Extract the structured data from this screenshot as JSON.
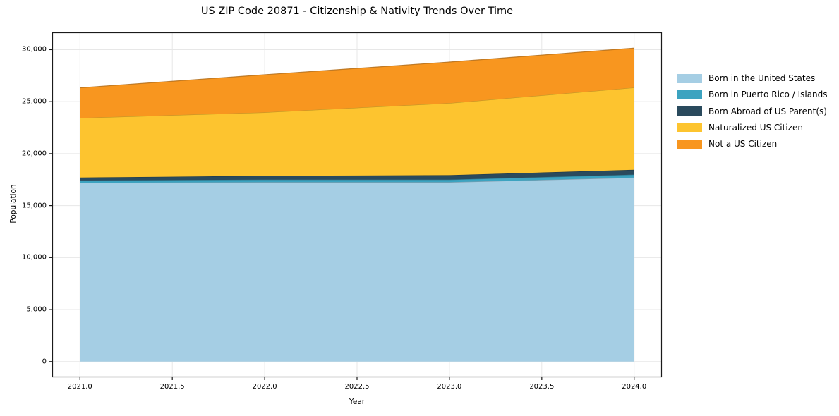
{
  "title": "US ZIP Code 20871 - Citizenship & Nativity Trends Over Time",
  "chart_data": {
    "type": "area",
    "stacked": true,
    "title": "US ZIP Code 20871 - Citizenship & Nativity Trends Over Time",
    "xlabel": "Year",
    "ylabel": "Population",
    "x": [
      2021,
      2022,
      2023,
      2024
    ],
    "series": [
      {
        "name": "Born in the United States",
        "color": "#a5cee4",
        "values": [
          17200,
          17250,
          17250,
          17700
        ]
      },
      {
        "name": "Born in Puerto Rico / Islands",
        "color": "#3ca3c0",
        "values": [
          220,
          250,
          250,
          280
        ]
      },
      {
        "name": "Born Abroad of US Parent(s)",
        "color": "#2a4a5d",
        "values": [
          280,
          370,
          430,
          470
        ]
      },
      {
        "name": "Naturalized US Citizen",
        "color": "#fdc42f",
        "values": [
          5730,
          6100,
          6930,
          7900
        ]
      },
      {
        "name": "Not a US Citizen",
        "color": "#f8961f",
        "values": [
          2900,
          3620,
          3950,
          3800
        ]
      }
    ],
    "totals": [
      26330,
      27590,
      28810,
      30150
    ],
    "x_ticks": [
      2021.0,
      2021.5,
      2022.0,
      2022.5,
      2023.0,
      2023.5,
      2024.0
    ],
    "x_tick_labels": [
      "2021.0",
      "2021.5",
      "2022.0",
      "2022.5",
      "2023.0",
      "2023.5",
      "2024.0"
    ],
    "y_ticks": [
      0,
      5000,
      10000,
      15000,
      20000,
      25000,
      30000
    ],
    "y_tick_labels": [
      "0",
      "5,000",
      "10,000",
      "15,000",
      "20,000",
      "25,000",
      "30,000"
    ],
    "ylim_data": [
      0,
      30150
    ],
    "axis_margin": 0.05,
    "grid": true,
    "grid_color": "#e7e7e7",
    "spine_color": "#1a1a1a",
    "legend_position": "right-outside-top"
  }
}
